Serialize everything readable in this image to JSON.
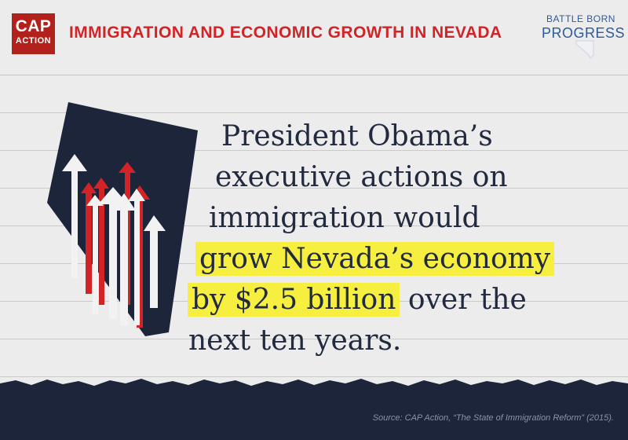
{
  "header": {
    "logo_line1": "CAP",
    "logo_line2": "ACTION",
    "title": "IMMIGRATION AND ECONOMIC GROWTH IN NEVADA",
    "partner_line1": "BATTLE BORN",
    "partner_line2": "PROGRESS"
  },
  "quote": {
    "line1": "President Obama’s",
    "line2": "executive actions on",
    "line3": "immigration would",
    "line4_highlight": "grow Nevada’s economy",
    "line5_highlight": "by $2.5 billion",
    "line5_rest": " over the",
    "line6": "next ten years."
  },
  "footer": {
    "source": "Source: CAP Action, “The State of Immigration Reform” (2015)."
  },
  "colors": {
    "brand_red": "#b3211d",
    "title_red": "#d22327",
    "navy": "#1c253a",
    "highlight": "#f6ef3f",
    "partner_blue": "#2d5a9a"
  }
}
